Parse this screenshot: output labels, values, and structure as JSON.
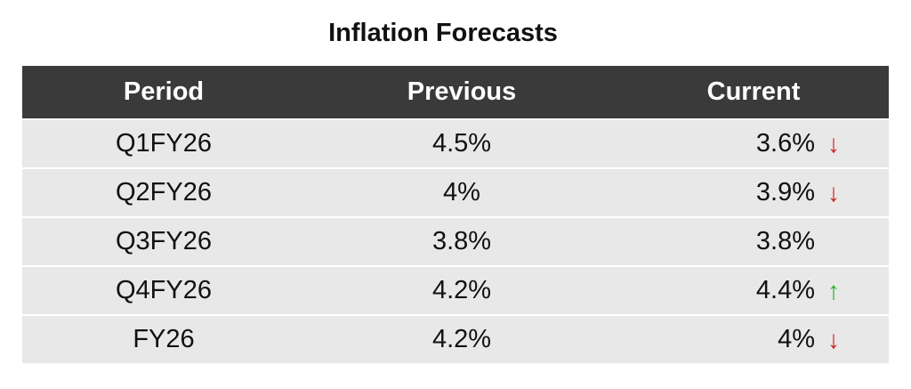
{
  "title": "Inflation Forecasts",
  "columns": {
    "period": "Period",
    "previous": "Previous",
    "current": "Current"
  },
  "rows": [
    {
      "period": "Q1FY26",
      "previous": "4.5%",
      "current": "3.6%",
      "trend": "down",
      "arrow": "↓"
    },
    {
      "period": "Q2FY26",
      "previous": "4%",
      "current": "3.9%",
      "trend": "down",
      "arrow": "↓"
    },
    {
      "period": "Q3FY26",
      "previous": "3.8%",
      "current": "3.8%",
      "trend": "flat",
      "arrow": ""
    },
    {
      "period": "Q4FY26",
      "previous": "4.2%",
      "current": "4.4%",
      "trend": "up",
      "arrow": "↑"
    },
    {
      "period": "FY26",
      "previous": "4.2%",
      "current": "4%",
      "trend": "down",
      "arrow": "↓"
    }
  ],
  "colors": {
    "header_bg": "#3a3a3a",
    "row_bg": "#e8e8e8",
    "down_arrow": "#d31f1f",
    "up_arrow": "#1fb51f"
  }
}
